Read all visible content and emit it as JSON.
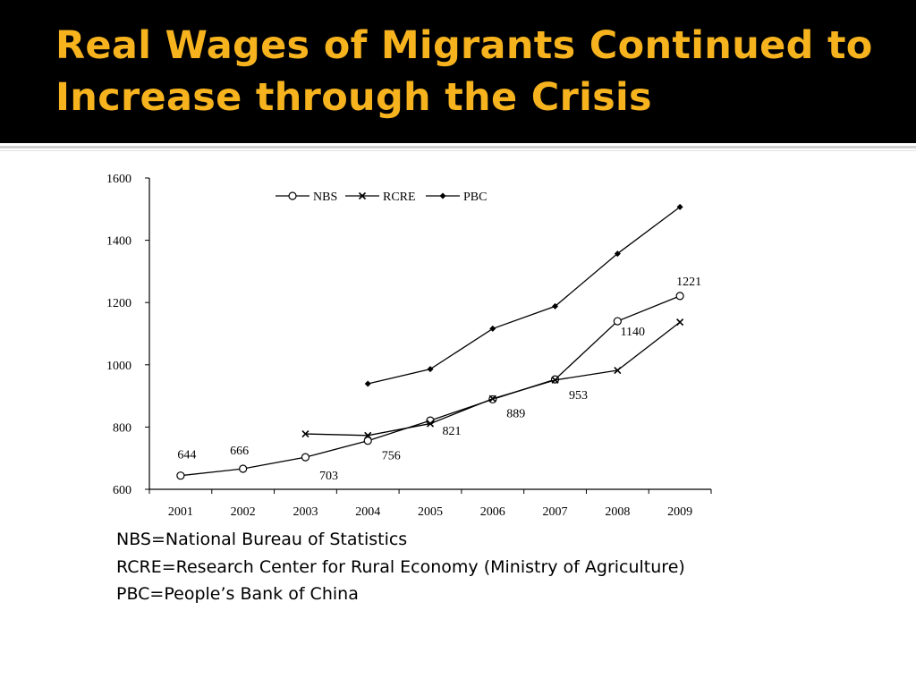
{
  "slide": {
    "title": "Real Wages of Migrants Continued to Increase through the Crisis",
    "colors": {
      "header_bg": "#000000",
      "title": "#f6b31e"
    }
  },
  "notes": [
    "NBS=National Bureau of Statistics",
    "RCRE=Research Center for Rural Economy (Ministry of Agriculture)",
    "PBC=People’s Bank of China"
  ],
  "chart_data": {
    "type": "line",
    "title": "",
    "xlabel": "",
    "ylabel": "",
    "x": [
      "2001",
      "2002",
      "2003",
      "2004",
      "2005",
      "2006",
      "2007",
      "2008",
      "2009"
    ],
    "ylim": [
      600,
      1600
    ],
    "yticks": [
      600,
      800,
      1000,
      1200,
      1400,
      1600
    ],
    "grid": false,
    "legend": "top-center",
    "series": [
      {
        "name": "NBS",
        "marker": "open-circle",
        "values": [
          644,
          666,
          703,
          756,
          821,
          889,
          953,
          1140,
          1221
        ]
      },
      {
        "name": "RCRE",
        "marker": "x",
        "values": [
          null,
          null,
          778,
          773,
          811,
          891,
          951,
          982,
          1137
        ]
      },
      {
        "name": "PBC",
        "marker": "diamond",
        "values": [
          null,
          null,
          null,
          939,
          986,
          1116,
          1188,
          1357,
          1507
        ]
      }
    ],
    "data_labels": [
      {
        "series": "NBS",
        "x": "2001",
        "text": "644"
      },
      {
        "series": "NBS",
        "x": "2002",
        "text": "666"
      },
      {
        "series": "NBS",
        "x": "2003",
        "text": "703"
      },
      {
        "series": "NBS",
        "x": "2004",
        "text": "756"
      },
      {
        "series": "NBS",
        "x": "2005",
        "text": "821"
      },
      {
        "series": "NBS",
        "x": "2006",
        "text": "889"
      },
      {
        "series": "NBS",
        "x": "2007",
        "text": "953"
      },
      {
        "series": "NBS",
        "x": "2008",
        "text": "1140"
      },
      {
        "series": "NBS",
        "x": "2009",
        "text": "1221"
      }
    ]
  }
}
